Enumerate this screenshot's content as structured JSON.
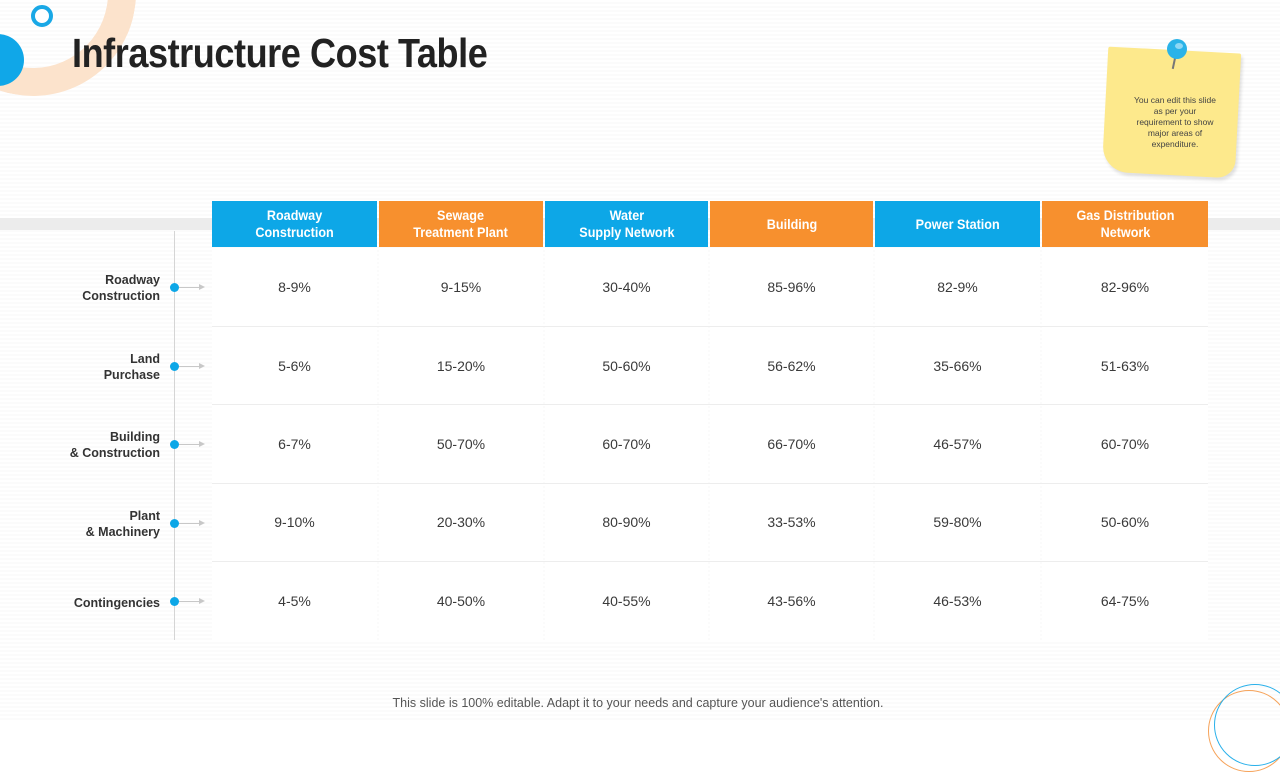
{
  "title": "Infrastructure Cost Table",
  "note": {
    "text": "You can edit this slide as per your requirement to show major areas of expenditure."
  },
  "table": {
    "columns": [
      {
        "label": "Roadway\nConstruction",
        "color": "#0da7e7"
      },
      {
        "label": "Sewage\nTreatment Plant",
        "color": "#f7902e"
      },
      {
        "label": "Water\nSupply Network",
        "color": "#0da7e7"
      },
      {
        "label": "Building",
        "color": "#f7902e"
      },
      {
        "label": "Power Station",
        "color": "#0da7e7"
      },
      {
        "label": "Gas Distribution\nNetwork",
        "color": "#f7902e"
      }
    ],
    "rows": [
      {
        "label": "Roadway\nConstruction",
        "values": [
          "8-9%",
          "9-15%",
          "30-40%",
          "85-96%",
          "82-9%",
          "82-96%"
        ]
      },
      {
        "label": "Land\nPurchase",
        "values": [
          "5-6%",
          "15-20%",
          "50-60%",
          "56-62%",
          "35-66%",
          "51-63%"
        ]
      },
      {
        "label": "Building\n& Construction",
        "values": [
          "6-7%",
          "50-70%",
          "60-70%",
          "66-70%",
          "46-57%",
          "60-70%"
        ]
      },
      {
        "label": "Plant\n& Machinery",
        "values": [
          "9-10%",
          "20-30%",
          "80-90%",
          "33-53%",
          "59-80%",
          "50-60%"
        ]
      },
      {
        "label": "Contingencies",
        "values": [
          "4-5%",
          "40-50%",
          "40-55%",
          "43-56%",
          "46-53%",
          "64-75%"
        ]
      }
    ]
  },
  "footer": "This slide is 100% editable. Adapt it to your needs and capture your audience's attention.",
  "colors": {
    "blue": "#0da7e7",
    "orange": "#f7902e",
    "note_yellow": "#fde98c"
  }
}
